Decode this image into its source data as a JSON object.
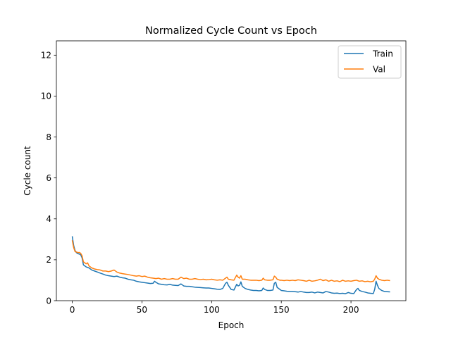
{
  "chart_data": {
    "type": "line",
    "title": "Normalized Cycle Count vs Epoch",
    "xlabel": "Epoch",
    "ylabel": "Cycle count",
    "xlim": [
      -11.4,
      239.4
    ],
    "ylim": [
      0,
      12.7
    ],
    "xticks": [
      0,
      50,
      100,
      150,
      200
    ],
    "yticks": [
      0,
      2,
      4,
      6,
      8,
      10,
      12
    ],
    "grid": false,
    "legend_position": "top-right",
    "series": [
      {
        "name": "Train",
        "color": "#1f77b4",
        "points": [
          [
            0,
            3.15
          ],
          [
            1,
            2.7
          ],
          [
            2,
            2.45
          ],
          [
            3,
            2.35
          ],
          [
            4,
            2.3
          ],
          [
            5,
            2.28
          ],
          [
            6,
            2.25
          ],
          [
            7,
            2.1
          ],
          [
            8,
            1.75
          ],
          [
            9,
            1.7
          ],
          [
            10,
            1.65
          ],
          [
            12,
            1.6
          ],
          [
            14,
            1.5
          ],
          [
            16,
            1.45
          ],
          [
            18,
            1.4
          ],
          [
            20,
            1.35
          ],
          [
            22,
            1.3
          ],
          [
            24,
            1.25
          ],
          [
            26,
            1.22
          ],
          [
            28,
            1.2
          ],
          [
            30,
            1.18
          ],
          [
            32,
            1.2
          ],
          [
            34,
            1.15
          ],
          [
            36,
            1.12
          ],
          [
            38,
            1.1
          ],
          [
            40,
            1.05
          ],
          [
            42,
            1.02
          ],
          [
            44,
            1.0
          ],
          [
            46,
            0.95
          ],
          [
            48,
            0.92
          ],
          [
            50,
            0.9
          ],
          [
            52,
            0.88
          ],
          [
            54,
            0.86
          ],
          [
            56,
            0.84
          ],
          [
            58,
            0.85
          ],
          [
            59,
            0.95
          ],
          [
            60,
            0.9
          ],
          [
            62,
            0.82
          ],
          [
            64,
            0.8
          ],
          [
            66,
            0.78
          ],
          [
            68,
            0.77
          ],
          [
            70,
            0.8
          ],
          [
            72,
            0.76
          ],
          [
            74,
            0.75
          ],
          [
            76,
            0.74
          ],
          [
            78,
            0.82
          ],
          [
            80,
            0.72
          ],
          [
            82,
            0.7
          ],
          [
            84,
            0.7
          ],
          [
            86,
            0.68
          ],
          [
            88,
            0.66
          ],
          [
            90,
            0.65
          ],
          [
            92,
            0.64
          ],
          [
            94,
            0.63
          ],
          [
            96,
            0.62
          ],
          [
            98,
            0.62
          ],
          [
            100,
            0.6
          ],
          [
            102,
            0.58
          ],
          [
            104,
            0.56
          ],
          [
            106,
            0.55
          ],
          [
            108,
            0.6
          ],
          [
            110,
            0.85
          ],
          [
            111,
            0.9
          ],
          [
            112,
            0.75
          ],
          [
            114,
            0.55
          ],
          [
            116,
            0.52
          ],
          [
            118,
            0.8
          ],
          [
            119,
            0.72
          ],
          [
            120,
            0.75
          ],
          [
            121,
            0.92
          ],
          [
            122,
            0.7
          ],
          [
            124,
            0.6
          ],
          [
            126,
            0.55
          ],
          [
            128,
            0.52
          ],
          [
            130,
            0.5
          ],
          [
            132,
            0.5
          ],
          [
            134,
            0.48
          ],
          [
            136,
            0.5
          ],
          [
            137,
            0.62
          ],
          [
            138,
            0.55
          ],
          [
            140,
            0.5
          ],
          [
            142,
            0.5
          ],
          [
            144,
            0.52
          ],
          [
            145,
            0.85
          ],
          [
            146,
            0.9
          ],
          [
            147,
            0.65
          ],
          [
            149,
            0.55
          ],
          [
            150,
            0.5
          ],
          [
            152,
            0.48
          ],
          [
            154,
            0.46
          ],
          [
            156,
            0.45
          ],
          [
            158,
            0.45
          ],
          [
            160,
            0.44
          ],
          [
            162,
            0.42
          ],
          [
            164,
            0.45
          ],
          [
            166,
            0.42
          ],
          [
            168,
            0.4
          ],
          [
            170,
            0.4
          ],
          [
            172,
            0.42
          ],
          [
            174,
            0.38
          ],
          [
            176,
            0.42
          ],
          [
            178,
            0.4
          ],
          [
            180,
            0.38
          ],
          [
            182,
            0.45
          ],
          [
            184,
            0.42
          ],
          [
            186,
            0.38
          ],
          [
            188,
            0.36
          ],
          [
            190,
            0.37
          ],
          [
            192,
            0.35
          ],
          [
            194,
            0.36
          ],
          [
            196,
            0.34
          ],
          [
            198,
            0.4
          ],
          [
            200,
            0.36
          ],
          [
            202,
            0.35
          ],
          [
            204,
            0.55
          ],
          [
            205,
            0.6
          ],
          [
            206,
            0.5
          ],
          [
            208,
            0.45
          ],
          [
            210,
            0.42
          ],
          [
            212,
            0.38
          ],
          [
            214,
            0.36
          ],
          [
            216,
            0.35
          ],
          [
            217,
            0.55
          ],
          [
            218,
            0.95
          ],
          [
            219,
            0.75
          ],
          [
            220,
            0.6
          ],
          [
            222,
            0.5
          ],
          [
            224,
            0.45
          ],
          [
            226,
            0.44
          ],
          [
            228,
            0.43
          ]
        ]
      },
      {
        "name": "Val",
        "color": "#ff7f0e",
        "points": [
          [
            0,
            2.95
          ],
          [
            1,
            2.6
          ],
          [
            2,
            2.4
          ],
          [
            3,
            2.38
          ],
          [
            4,
            2.35
          ],
          [
            5,
            2.36
          ],
          [
            6,
            2.32
          ],
          [
            7,
            2.2
          ],
          [
            8,
            1.9
          ],
          [
            9,
            1.85
          ],
          [
            10,
            1.8
          ],
          [
            11,
            1.85
          ],
          [
            12,
            1.7
          ],
          [
            14,
            1.6
          ],
          [
            16,
            1.55
          ],
          [
            18,
            1.52
          ],
          [
            20,
            1.5
          ],
          [
            22,
            1.45
          ],
          [
            24,
            1.45
          ],
          [
            26,
            1.42
          ],
          [
            28,
            1.45
          ],
          [
            30,
            1.5
          ],
          [
            32,
            1.4
          ],
          [
            34,
            1.35
          ],
          [
            36,
            1.32
          ],
          [
            38,
            1.3
          ],
          [
            40,
            1.28
          ],
          [
            42,
            1.25
          ],
          [
            44,
            1.22
          ],
          [
            46,
            1.2
          ],
          [
            48,
            1.22
          ],
          [
            50,
            1.18
          ],
          [
            52,
            1.2
          ],
          [
            54,
            1.15
          ],
          [
            56,
            1.12
          ],
          [
            58,
            1.1
          ],
          [
            60,
            1.08
          ],
          [
            62,
            1.1
          ],
          [
            64,
            1.05
          ],
          [
            66,
            1.08
          ],
          [
            68,
            1.05
          ],
          [
            70,
            1.05
          ],
          [
            72,
            1.08
          ],
          [
            74,
            1.05
          ],
          [
            76,
            1.05
          ],
          [
            78,
            1.15
          ],
          [
            80,
            1.08
          ],
          [
            82,
            1.1
          ],
          [
            84,
            1.05
          ],
          [
            86,
            1.05
          ],
          [
            88,
            1.08
          ],
          [
            90,
            1.05
          ],
          [
            92,
            1.03
          ],
          [
            94,
            1.05
          ],
          [
            96,
            1.02
          ],
          [
            98,
            1.03
          ],
          [
            100,
            1.05
          ],
          [
            102,
            1.02
          ],
          [
            104,
            1.0
          ],
          [
            106,
            1.02
          ],
          [
            108,
            1.0
          ],
          [
            110,
            1.1
          ],
          [
            111,
            1.15
          ],
          [
            112,
            1.05
          ],
          [
            114,
            1.02
          ],
          [
            116,
            1.0
          ],
          [
            118,
            1.25
          ],
          [
            119,
            1.15
          ],
          [
            120,
            1.1
          ],
          [
            121,
            1.22
          ],
          [
            122,
            1.05
          ],
          [
            124,
            1.05
          ],
          [
            126,
            1.02
          ],
          [
            128,
            1.0
          ],
          [
            130,
            1.0
          ],
          [
            132,
            1.0
          ],
          [
            134,
            0.98
          ],
          [
            136,
            1.0
          ],
          [
            137,
            1.1
          ],
          [
            138,
            1.02
          ],
          [
            140,
            1.0
          ],
          [
            142,
            1.0
          ],
          [
            144,
            1.02
          ],
          [
            145,
            1.2
          ],
          [
            146,
            1.15
          ],
          [
            147,
            1.05
          ],
          [
            149,
            1.0
          ],
          [
            150,
            1.0
          ],
          [
            152,
            0.98
          ],
          [
            154,
            1.0
          ],
          [
            156,
            0.98
          ],
          [
            158,
            1.0
          ],
          [
            160,
            0.98
          ],
          [
            162,
            1.02
          ],
          [
            164,
            1.0
          ],
          [
            166,
            0.98
          ],
          [
            168,
            0.95
          ],
          [
            170,
            1.0
          ],
          [
            172,
            0.95
          ],
          [
            174,
            0.97
          ],
          [
            176,
            1.0
          ],
          [
            178,
            1.05
          ],
          [
            180,
            0.98
          ],
          [
            182,
            1.02
          ],
          [
            184,
            0.95
          ],
          [
            186,
            1.0
          ],
          [
            188,
            0.95
          ],
          [
            190,
            0.97
          ],
          [
            192,
            0.93
          ],
          [
            194,
            1.0
          ],
          [
            196,
            0.95
          ],
          [
            198,
            0.97
          ],
          [
            200,
            0.95
          ],
          [
            202,
            0.98
          ],
          [
            204,
            1.0
          ],
          [
            206,
            0.95
          ],
          [
            208,
            0.97
          ],
          [
            210,
            0.93
          ],
          [
            212,
            0.95
          ],
          [
            214,
            0.92
          ],
          [
            216,
            0.95
          ],
          [
            217,
            1.05
          ],
          [
            218,
            1.22
          ],
          [
            219,
            1.1
          ],
          [
            220,
            1.05
          ],
          [
            222,
            1.0
          ],
          [
            224,
            0.98
          ],
          [
            226,
            1.0
          ],
          [
            228,
            0.98
          ]
        ]
      }
    ]
  }
}
